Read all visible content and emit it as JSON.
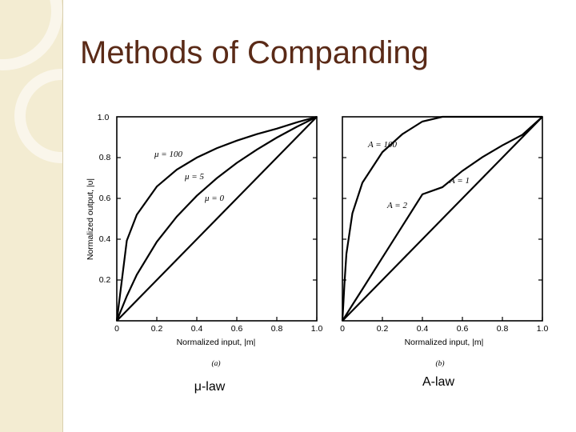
{
  "slide": {
    "title": "Methods of Companding"
  },
  "chart_data": [
    {
      "type": "line",
      "panel_label": "(a)",
      "caption": "μ-law",
      "xlabel": "Normalized input, |m|",
      "ylabel": "Normalized output, |υ|",
      "xlim": [
        0,
        1
      ],
      "ylim": [
        0,
        1
      ],
      "x_ticks": [
        "0",
        "0.2",
        "0.4",
        "0.6",
        "0.8",
        "1.0"
      ],
      "y_ticks": [
        "0.2",
        "0.4",
        "0.6",
        "0.8",
        "1.0"
      ],
      "x": [
        0,
        0.05,
        0.1,
        0.2,
        0.3,
        0.4,
        0.5,
        0.6,
        0.7,
        0.8,
        0.9,
        1.0
      ],
      "series": [
        {
          "name": "μ = 100",
          "values": [
            0,
            0.393,
            0.52,
            0.658,
            0.741,
            0.8,
            0.846,
            0.883,
            0.915,
            0.942,
            0.973,
            1.0
          ]
        },
        {
          "name": "μ = 5",
          "values": [
            0,
            0.121,
            0.226,
            0.387,
            0.511,
            0.613,
            0.699,
            0.774,
            0.839,
            0.898,
            0.951,
            1.0
          ]
        },
        {
          "name": "μ = 0",
          "values": [
            0,
            0.05,
            0.1,
            0.2,
            0.3,
            0.4,
            0.5,
            0.6,
            0.7,
            0.8,
            0.9,
            1.0
          ]
        }
      ]
    },
    {
      "type": "line",
      "panel_label": "(b)",
      "caption": "A-law",
      "xlabel": "Normalized input, |m|",
      "xlim": [
        0,
        1
      ],
      "ylim": [
        0,
        1
      ],
      "x_ticks": [
        "0",
        "0.2",
        "0.4",
        "0.6",
        "0.8",
        "1.0"
      ],
      "x": [
        0,
        0.005,
        0.01,
        0.02,
        0.05,
        0.1,
        0.2,
        0.3,
        0.4,
        0.5,
        0.6,
        0.7,
        0.8,
        0.9,
        1.0
      ],
      "series": [
        {
          "name": "A = 100",
          "values": [
            0,
            0.087,
            0.178,
            0.328,
            0.527,
            0.677,
            0.827,
            0.915,
            0.977,
            1.0,
            1.0,
            1.0,
            1.0,
            1.0,
            1.0
          ]
        },
        {
          "name": "A = 2",
          "values": [
            0,
            0.008,
            0.015,
            0.031,
            0.078,
            0.155,
            0.31,
            0.465,
            0.62,
            0.655,
            0.735,
            0.802,
            0.86,
            0.912,
            1.0
          ]
        },
        {
          "name": "A = 1",
          "values": [
            0,
            0.005,
            0.01,
            0.02,
            0.05,
            0.1,
            0.2,
            0.3,
            0.4,
            0.5,
            0.6,
            0.7,
            0.8,
            0.9,
            1.0
          ]
        }
      ]
    }
  ]
}
